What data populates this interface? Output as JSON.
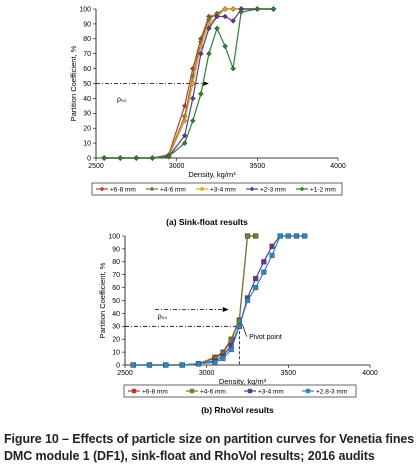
{
  "chart_data": [
    {
      "type": "line",
      "subtitle": "(a) Sink-float results",
      "xlabel": "Density, kg/m³",
      "ylabel": "Partition Coefficient, %",
      "xlim": [
        2500,
        4000
      ],
      "ylim": [
        0,
        100
      ],
      "xticks": [
        2500,
        3000,
        3500,
        4000
      ],
      "yticks": [
        0,
        10,
        20,
        30,
        40,
        50,
        60,
        70,
        80,
        90,
        100
      ],
      "grid": false,
      "legend_position": "bottom",
      "annotations": {
        "rho_label": "ρ₅₀",
        "rho_level": 50,
        "rho_x_from": 2500,
        "rho_x_to": 3200
      },
      "series": [
        {
          "name": "+6-8 mm",
          "color": "#c0392b",
          "marker": "diamond",
          "x": [
            2550,
            2650,
            2750,
            2850,
            2950,
            3050,
            3100,
            3150,
            3200,
            3250,
            3300,
            3350,
            3400,
            3500,
            3600
          ],
          "y": [
            0,
            0,
            0,
            0,
            2,
            35,
            60,
            80,
            95,
            96,
            100,
            100,
            100,
            100,
            100
          ]
        },
        {
          "name": "+4-6 mm",
          "color": "#6b7f3a",
          "marker": "diamond",
          "x": [
            2550,
            2650,
            2750,
            2850,
            2950,
            3050,
            3100,
            3150,
            3200,
            3250,
            3300,
            3350,
            3400,
            3500,
            3600
          ],
          "y": [
            0,
            0,
            0,
            0,
            1,
            28,
            55,
            78,
            93,
            97,
            100,
            100,
            100,
            100,
            100
          ]
        },
        {
          "name": "+3-4 mm",
          "color": "#e6a020",
          "marker": "diamond",
          "x": [
            2550,
            2650,
            2750,
            2850,
            2950,
            3050,
            3100,
            3150,
            3200,
            3250,
            3300,
            3350,
            3400,
            3500,
            3600
          ],
          "y": [
            0,
            0,
            0,
            0,
            1,
            25,
            50,
            75,
            90,
            95,
            100,
            100,
            100,
            100,
            100
          ]
        },
        {
          "name": "+2-3 mm",
          "color": "#5b3a8c",
          "marker": "diamond",
          "x": [
            2550,
            2650,
            2750,
            2850,
            2950,
            3050,
            3100,
            3150,
            3200,
            3250,
            3300,
            3350,
            3400,
            3500,
            3600
          ],
          "y": [
            0,
            0,
            0,
            0,
            1,
            15,
            40,
            70,
            87,
            95,
            95,
            92,
            100,
            100,
            100
          ]
        },
        {
          "name": "+1-2 mm",
          "color": "#2e7d32",
          "marker": "diamond",
          "x": [
            2550,
            2650,
            2750,
            2850,
            2950,
            3050,
            3100,
            3150,
            3200,
            3250,
            3300,
            3350,
            3400,
            3500,
            3600
          ],
          "y": [
            0,
            0,
            0,
            0,
            1,
            10,
            25,
            43,
            70,
            87,
            75,
            60,
            98,
            100,
            100
          ]
        }
      ]
    },
    {
      "type": "line",
      "subtitle": "(b) RhoVol results",
      "xlabel": "Density, kg/m³",
      "ylabel": "Partition Coefficient, %",
      "xlim": [
        2500,
        4000
      ],
      "ylim": [
        0,
        100
      ],
      "xticks": [
        2500,
        3000,
        3500,
        4000
      ],
      "yticks": [
        0,
        10,
        20,
        30,
        40,
        50,
        60,
        70,
        80,
        90,
        100
      ],
      "grid": false,
      "legend_position": "bottom",
      "annotations": {
        "rho_label": "ρ₅₀",
        "rho_level": 43,
        "pivot_label": "Pivot point",
        "pivot_level": 30,
        "pivot_x": 3200
      },
      "series": [
        {
          "name": "+6-8 mm",
          "color": "#c0392b",
          "marker": "square",
          "x": [
            2550,
            2650,
            2750,
            2850,
            2950,
            3050,
            3100,
            3150,
            3200,
            3250,
            3300
          ],
          "y": [
            0,
            0,
            0,
            0,
            1,
            6,
            10,
            20,
            35,
            100,
            100
          ]
        },
        {
          "name": "+4-6 mm",
          "color": "#6b7f3a",
          "marker": "square",
          "x": [
            2550,
            2650,
            2750,
            2850,
            2950,
            3050,
            3100,
            3150,
            3200,
            3250,
            3300
          ],
          "y": [
            0,
            0,
            0,
            0,
            1,
            5,
            9,
            19,
            34,
            100,
            100
          ]
        },
        {
          "name": "+3-4 mm",
          "color": "#5b3a8c",
          "marker": "square",
          "x": [
            2550,
            2650,
            2750,
            2850,
            2950,
            3050,
            3100,
            3150,
            3200,
            3250,
            3300,
            3350,
            3400,
            3450,
            3500,
            3550,
            3600
          ],
          "y": [
            0,
            0,
            0,
            0,
            1,
            3,
            7,
            15,
            30,
            52,
            67,
            80,
            92,
            100,
            100,
            100,
            100
          ]
        },
        {
          "name": "+2.8-3 mm",
          "color": "#2e86c1",
          "marker": "square",
          "x": [
            2550,
            2650,
            2750,
            2850,
            2950,
            3050,
            3100,
            3150,
            3200,
            3250,
            3300,
            3350,
            3400,
            3450,
            3500,
            3550,
            3600
          ],
          "y": [
            0,
            0,
            0,
            0,
            1,
            2,
            5,
            12,
            30,
            50,
            60,
            72,
            85,
            100,
            100,
            100,
            100
          ]
        }
      ]
    }
  ],
  "caption": {
    "line1": "Figure 10 – Effects of particle size on partition curves for Venetia fines",
    "line2": "DMC module 1 (DF1), sink-float and RhoVol results; 2016 audits"
  }
}
